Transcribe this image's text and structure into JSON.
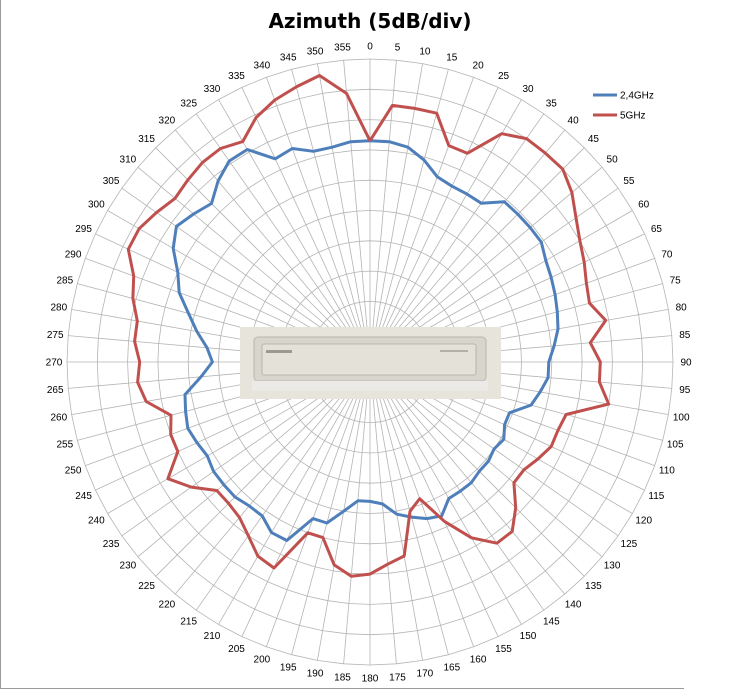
{
  "chart_data": {
    "type": "radar",
    "title": "Azimuth (5dB/div)",
    "angles_deg": [
      0,
      5,
      10,
      15,
      20,
      25,
      30,
      35,
      40,
      45,
      50,
      55,
      60,
      65,
      70,
      75,
      80,
      85,
      90,
      95,
      100,
      105,
      110,
      115,
      120,
      125,
      130,
      135,
      140,
      145,
      150,
      155,
      160,
      165,
      170,
      175,
      180,
      185,
      190,
      195,
      200,
      205,
      210,
      215,
      220,
      225,
      230,
      235,
      240,
      245,
      250,
      255,
      260,
      265,
      270,
      275,
      280,
      285,
      290,
      295,
      300,
      305,
      310,
      315,
      320,
      325,
      330,
      335,
      340,
      345,
      350,
      355
    ],
    "angle_labels": [
      "0",
      "5",
      "10",
      "15",
      "20",
      "25",
      "30",
      "35",
      "40",
      "45",
      "50",
      "55",
      "60",
      "65",
      "70",
      "75",
      "80",
      "85",
      "90",
      "95",
      "100",
      "105",
      "110",
      "115",
      "120",
      "125",
      "130",
      "135",
      "140",
      "145",
      "150",
      "155",
      "160",
      "165",
      "170",
      "175",
      "180",
      "185",
      "190",
      "195",
      "200",
      "205",
      "210",
      "215",
      "220",
      "225",
      "230",
      "235",
      "240",
      "245",
      "250",
      "255",
      "260",
      "265",
      "270",
      "275",
      "280",
      "285",
      "290",
      "295",
      "300",
      "305",
      "310",
      "315",
      "320",
      "325",
      "330",
      "335",
      "340",
      "345",
      "350",
      "355"
    ],
    "r_divisions": 10,
    "r_max": 10,
    "grid": true,
    "legend": "top-right",
    "series": [
      {
        "name": "2,4GHz",
        "color": "#4F7FBA",
        "values": [
          7.3,
          7.3,
          7.2,
          6.9,
          6.5,
          6.4,
          6.4,
          6.4,
          6.9,
          6.9,
          6.9,
          6.9,
          6.7,
          6.6,
          6.5,
          6.4,
          6.3,
          6.1,
          5.9,
          5.9,
          5.7,
          5.5,
          4.9,
          4.9,
          5.1,
          5.0,
          5.1,
          5.1,
          5.2,
          5.2,
          5.2,
          5.6,
          5.5,
          5.3,
          5.1,
          4.7,
          4.6,
          4.6,
          5.0,
          5.5,
          5.5,
          6.5,
          6.5,
          6.2,
          6.2,
          6.3,
          6.3,
          6.3,
          6.2,
          6.3,
          6.4,
          6.3,
          6.2,
          5.6,
          5.2,
          5.4,
          5.8,
          6.2,
          6.7,
          7.0,
          7.5,
          7.8,
          7.6,
          7.4,
          7.8,
          8.1,
          8.1,
          7.4,
          7.5,
          7.2,
          7.2,
          7.3
        ]
      },
      {
        "name": "5GHz",
        "color": "#C0504D",
        "values": [
          7.3,
          8.5,
          8.5,
          8.5,
          7.6,
          7.6,
          8.7,
          9.0,
          9.0,
          9.0,
          8.7,
          8.3,
          8.0,
          7.8,
          7.6,
          7.5,
          7.9,
          7.3,
          7.6,
          7.6,
          8.0,
          6.7,
          6.6,
          6.6,
          6.4,
          6.2,
          6.2,
          6.8,
          7.3,
          7.3,
          6.7,
          5.8,
          4.8,
          5.1,
          6.5,
          6.7,
          7.0,
          7.1,
          6.8,
          6.0,
          6.0,
          7.5,
          7.4,
          7.0,
          6.7,
          6.6,
          6.6,
          7.2,
          7.7,
          7.0,
          7.0,
          6.8,
          7.5,
          7.7,
          7.6,
          7.8,
          7.8,
          8.1,
          8.3,
          8.8,
          8.8,
          8.6,
          8.4,
          8.5,
          8.6,
          8.6,
          8.4,
          8.9,
          9.2,
          9.4,
          9.6,
          8.9
        ]
      }
    ]
  },
  "device_image": {
    "description_icon": "router-device-image",
    "body_color": "#d8d6cc",
    "background_color": "#e6e4db"
  }
}
